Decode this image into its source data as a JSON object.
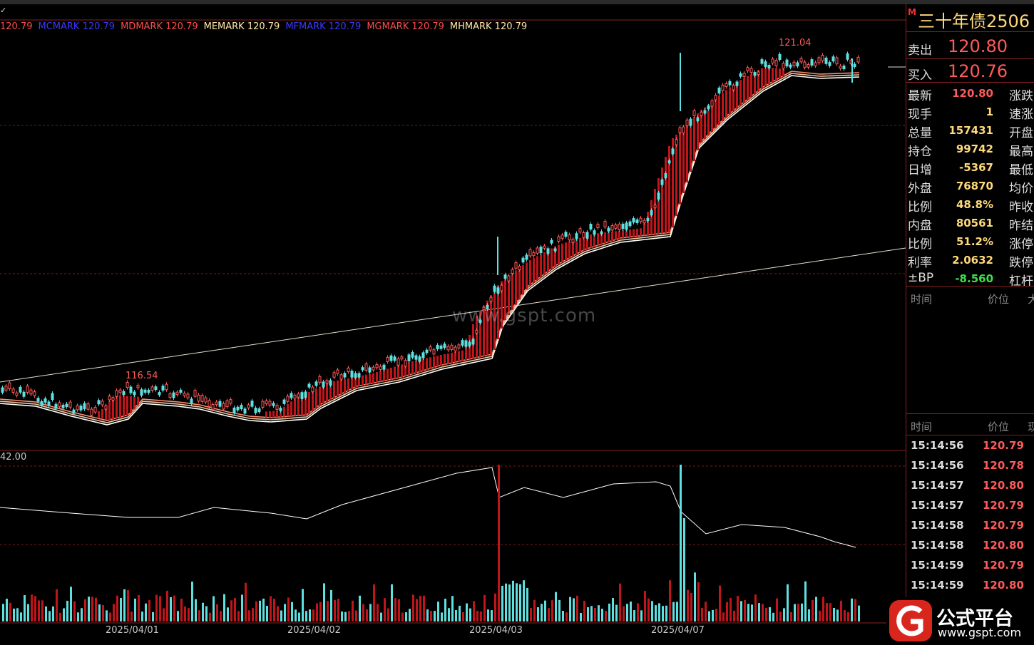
{
  "legend": [
    {
      "label": "120.79",
      "color": "#ff4d4d"
    },
    {
      "label": "MCMARK 120.79",
      "color": "#3a3aff"
    },
    {
      "label": "MDMARK 120.79",
      "color": "#ff4d4d"
    },
    {
      "label": "MEMARK 120.79",
      "color": "#ffe8a8"
    },
    {
      "label": "MFMARK 120.79",
      "color": "#3a3aff"
    },
    {
      "label": "MGMARK 120.79",
      "color": "#ff4d4d"
    },
    {
      "label": "MHMARK 120.79",
      "color": "#ffe8a8"
    }
  ],
  "price_labels": {
    "high": "121.04",
    "low_peak": "116.54"
  },
  "lower_axis_label": "42.00",
  "watermark": "www.gspt.com",
  "dates": [
    "2025/04/01",
    "2025/04/02",
    "2025/04/03",
    "2025/04/07"
  ],
  "panel": {
    "marker": "M",
    "title": "三十年债2506",
    "sell_label": "卖出",
    "sell_value": "120.80",
    "buy_label": "买入",
    "buy_value": "120.76",
    "stats": [
      {
        "k": "最新",
        "v": "120.80",
        "s": "涨跌",
        "color": "red"
      },
      {
        "k": "现手",
        "v": "1",
        "s": "速涨",
        "color": "yellow"
      },
      {
        "k": "总量",
        "v": "157431",
        "s": "开盘",
        "color": "yellow"
      },
      {
        "k": "持仓",
        "v": "99742",
        "s": "最高",
        "color": "yellow"
      },
      {
        "k": "日增",
        "v": "-5367",
        "s": "最低",
        "color": "yellow"
      },
      {
        "k": "外盘",
        "v": "76870",
        "s": "均价",
        "color": "yellow"
      },
      {
        "k": "比例",
        "v": "48.8%",
        "s": "昨收",
        "color": "yellow"
      },
      {
        "k": "内盘",
        "v": "80561",
        "s": "昨结",
        "color": "yellow"
      },
      {
        "k": "比例",
        "v": "51.2%",
        "s": "涨停",
        "color": "yellow"
      },
      {
        "k": "利率",
        "v": "2.0632",
        "s": "跌停",
        "color": "yellow"
      },
      {
        "k": "±BP",
        "v": "-8.560",
        "s": "杠杆",
        "color": "green"
      }
    ],
    "hdr1": {
      "time": "时间",
      "price": "价位",
      "extra": "大"
    },
    "hdr2": {
      "time": "时间",
      "price": "价位",
      "extra": "现"
    },
    "ticks": [
      {
        "t": "15:14:56",
        "p": "120.79",
        "color": "red"
      },
      {
        "t": "15:14:56",
        "p": "120.78",
        "color": "red"
      },
      {
        "t": "15:14:57",
        "p": "120.80",
        "color": "red"
      },
      {
        "t": "15:14:57",
        "p": "120.79",
        "color": "red"
      },
      {
        "t": "15:14:58",
        "p": "120.79",
        "color": "red"
      },
      {
        "t": "15:14:58",
        "p": "120.80",
        "color": "red"
      },
      {
        "t": "15:14:59",
        "p": "120.79",
        "color": "red"
      },
      {
        "t": "15:14:59",
        "p": "120.80",
        "color": "red"
      }
    ]
  },
  "logo": {
    "name": "公式平台",
    "url": "www.gspt.com"
  }
}
